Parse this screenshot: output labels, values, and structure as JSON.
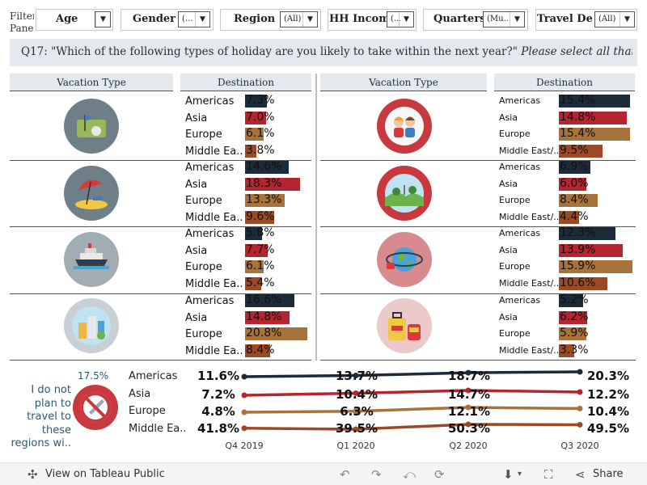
{
  "filters": {
    "caption": "Filter Panel",
    "items": [
      {
        "label": "Age",
        "value": ""
      },
      {
        "label": "Gender",
        "value": "(..."
      },
      {
        "label": "Region",
        "value": "(All)"
      },
      {
        "label": "HH Income",
        "value": "(..."
      },
      {
        "label": "Quarters",
        "value": "(Mu..."
      },
      {
        "label": "Travel De...",
        "value": "(All)"
      }
    ]
  },
  "question": {
    "text": "Q17: \"Which of the following types of holiday are you likely to take within the next year?\"",
    "note": "Please select all that apply"
  },
  "headers": {
    "vacation_type": "Vacation Type",
    "destination": "Destination"
  },
  "colors": {
    "americas": "#1c2b3a",
    "asia": "#b5252f",
    "europe": "#a8733a",
    "middle_east": "#9c4a26",
    "header_bg": "#e4e9ee",
    "icon_gray": "#6f7f88",
    "icon_red": "#c8393f"
  },
  "left_panel": {
    "rows": [
      {
        "icon": "golf-icon",
        "items": [
          {
            "label": "Americas",
            "pct": "7.3%",
            "value": 7.3
          },
          {
            "label": "Asia",
            "pct": "7.0%",
            "value": 7.0
          },
          {
            "label": "Europe",
            "pct": "6.1%",
            "value": 6.1
          },
          {
            "label": "Middle Ea..",
            "pct": "3.8%",
            "value": 3.8
          }
        ]
      },
      {
        "icon": "beach-umbrella-icon",
        "items": [
          {
            "label": "Americas",
            "pct": "14.6%",
            "value": 14.6
          },
          {
            "label": "Asia",
            "pct": "18.3%",
            "value": 18.3
          },
          {
            "label": "Europe",
            "pct": "13.3%",
            "value": 13.3
          },
          {
            "label": "Middle Ea..",
            "pct": "9.6%",
            "value": 9.6
          }
        ]
      },
      {
        "icon": "cruise-ship-icon",
        "items": [
          {
            "label": "Americas",
            "pct": "5.8%",
            "value": 5.8
          },
          {
            "label": "Asia",
            "pct": "7.7%",
            "value": 7.7
          },
          {
            "label": "Europe",
            "pct": "6.1%",
            "value": 6.1
          },
          {
            "label": "Middle Ea..",
            "pct": "5.4%",
            "value": 5.4
          }
        ]
      },
      {
        "icon": "city-buildings-icon",
        "items": [
          {
            "label": "Americas",
            "pct": "16.6%",
            "value": 16.6
          },
          {
            "label": "Asia",
            "pct": "14.8%",
            "value": 14.8
          },
          {
            "label": "Europe",
            "pct": "20.8%",
            "value": 20.8
          },
          {
            "label": "Middle Ea..",
            "pct": "8.4%",
            "value": 8.4
          }
        ]
      }
    ]
  },
  "right_panel": {
    "rows": [
      {
        "icon": "family-icon",
        "items": [
          {
            "label": "Americas",
            "pct": "15.4%",
            "value": 15.4
          },
          {
            "label": "Asia",
            "pct": "14.8%",
            "value": 14.8
          },
          {
            "label": "Europe",
            "pct": "15.4%",
            "value": 15.4
          },
          {
            "label": "Middle East/..",
            "pct": "9.5%",
            "value": 9.5
          }
        ]
      },
      {
        "icon": "countryside-icon",
        "items": [
          {
            "label": "Americas",
            "pct": "6.9%",
            "value": 6.9
          },
          {
            "label": "Asia",
            "pct": "6.0%",
            "value": 6.0
          },
          {
            "label": "Europe",
            "pct": "8.4%",
            "value": 8.4
          },
          {
            "label": "Middle East/..",
            "pct": "4.4%",
            "value": 4.4
          }
        ]
      },
      {
        "icon": "world-travel-icon",
        "items": [
          {
            "label": "Americas",
            "pct": "12.3%",
            "value": 12.3
          },
          {
            "label": "Asia",
            "pct": "13.9%",
            "value": 13.9
          },
          {
            "label": "Europe",
            "pct": "15.9%",
            "value": 15.9
          },
          {
            "label": "Middle East/..",
            "pct": "10.6%",
            "value": 10.6
          }
        ]
      },
      {
        "icon": "luggage-icon",
        "items": [
          {
            "label": "Americas",
            "pct": "5.2%",
            "value": 5.2
          },
          {
            "label": "Asia",
            "pct": "6.2%",
            "value": 6.2
          },
          {
            "label": "Europe",
            "pct": "5.9%",
            "value": 5.9
          },
          {
            "label": "Middle East/..",
            "pct": "3.3%",
            "value": 3.3
          }
        ]
      }
    ]
  },
  "not_travel": {
    "pct": "17.5%",
    "text": "I do not plan to travel to these regions wi..",
    "icon": "no-flight-icon"
  },
  "chart_data": {
    "type": "line",
    "x": [
      "Q4 2019",
      "Q1 2020",
      "Q2 2020",
      "Q3 2020"
    ],
    "series": [
      {
        "name": "Americas",
        "values": [
          11.6,
          13.7,
          18.7,
          20.3
        ],
        "labels": [
          "11.6%",
          "13.7%",
          "18.7%",
          "20.3%"
        ],
        "color": "#1c2b3a"
      },
      {
        "name": "Asia",
        "values": [
          7.2,
          10.4,
          14.7,
          12.2
        ],
        "labels": [
          "7.2%",
          "10.4%",
          "14.7%",
          "12.2%"
        ],
        "color": "#b5252f"
      },
      {
        "name": "Europe",
        "values": [
          4.8,
          6.3,
          12.1,
          10.4
        ],
        "labels": [
          "4.8%",
          "6.3%",
          "12.1%",
          "10.4%"
        ],
        "color": "#a8733a"
      },
      {
        "name": "Middle Ea..",
        "values": [
          41.8,
          39.5,
          50.3,
          49.5
        ],
        "labels": [
          "41.8%",
          "39.5%",
          "50.3%",
          "49.5%"
        ],
        "color": "#9c4a26"
      }
    ]
  },
  "toolbar": {
    "view_label": "View on Tableau Public",
    "share_label": "Share"
  }
}
